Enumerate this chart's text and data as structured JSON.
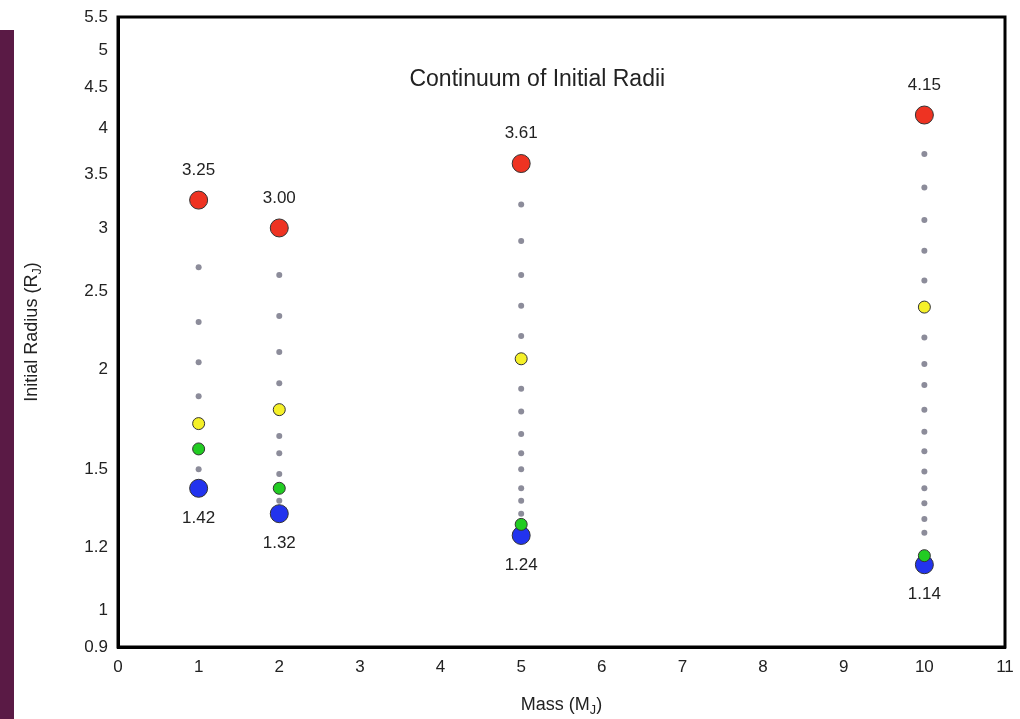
{
  "chart_data": {
    "type": "scatter",
    "title": "Continuum of Initial Radii",
    "xlabel": "Mass (M$_{J}$)",
    "ylabel": "Initial Radius (R$_{J}$)",
    "log": "y",
    "grid": false,
    "legend": false,
    "marker": "circle",
    "xlim": [
      0,
      11
    ],
    "xticks": [
      0,
      1,
      2,
      3,
      4,
      5,
      6,
      7,
      8,
      9,
      10,
      11
    ],
    "ylim": [
      0.9,
      5.5
    ],
    "yticks": [
      0.9,
      1,
      1.2,
      1.5,
      2,
      2.5,
      3,
      3.5,
      4,
      4.5,
      5,
      5.5
    ],
    "series": [
      {
        "color": "#8c8c9a",
        "x": [
          1,
          1,
          1,
          1,
          1,
          2,
          2,
          2,
          2,
          2,
          2,
          2,
          2,
          5,
          5,
          5,
          5,
          5,
          5,
          5,
          5,
          5,
          5,
          5,
          5,
          5,
          10,
          10,
          10,
          10,
          10,
          10,
          10,
          10,
          10,
          10,
          10,
          10,
          10,
          10,
          10,
          10
        ],
        "values": [
          2.68,
          2.29,
          2.04,
          1.85,
          1.5,
          2.62,
          2.33,
          2.1,
          1.92,
          1.65,
          1.57,
          1.48,
          1.37,
          3.21,
          2.89,
          2.62,
          2.4,
          2.2,
          1.89,
          1.77,
          1.66,
          1.57,
          1.5,
          1.42,
          1.37,
          1.32,
          3.71,
          3.37,
          3.07,
          2.81,
          2.58,
          2.19,
          2.03,
          1.91,
          1.78,
          1.67,
          1.58,
          1.49,
          1.42,
          1.36,
          1.3,
          1.25
        ]
      },
      {
        "color": "#f5f028",
        "x": [
          1,
          2,
          5,
          10
        ],
        "values": [
          1.71,
          1.78,
          2.06,
          2.39
        ]
      },
      {
        "color": "#22cc22",
        "x": [
          1,
          2,
          5,
          10
        ],
        "values": [
          1.59,
          1.42,
          1.28,
          1.17
        ]
      },
      {
        "color": "#ee3322",
        "x": [
          1,
          2,
          5,
          10
        ],
        "values": [
          3.25,
          3.0,
          3.61,
          4.15
        ],
        "value_labels": [
          "3.25",
          "3.00",
          "3.61",
          "4.15"
        ]
      },
      {
        "color": "#2233ee",
        "x": [
          1,
          2,
          5,
          10
        ],
        "values": [
          1.42,
          1.32,
          1.24,
          1.14
        ],
        "value_labels": [
          "1.42",
          "1.32",
          "1.24",
          "1.14"
        ]
      }
    ]
  }
}
